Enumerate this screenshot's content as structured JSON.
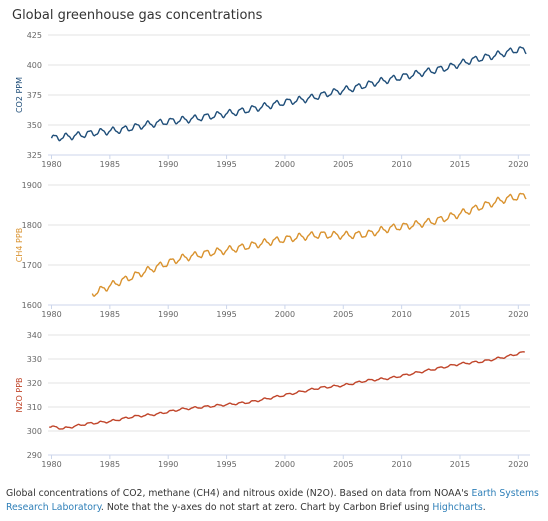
{
  "title": "Global greenhouse gas concentrations",
  "caption": {
    "text1": "Global concentrations of CO2, methane (CH4) and nitrous oxide (N2O). Based on data from NOAA's ",
    "link1": "Earth Systems Research Laboratory",
    "text2": ". Note that the y-axes do not start at zero. Chart by Carbon Brief using ",
    "link2": "Highcharts",
    "text3": "."
  },
  "chart_data": [
    {
      "type": "line",
      "ylabel": "CO2 PPM",
      "color": "#1f4e79",
      "ylim": [
        325,
        425
      ],
      "yticks": [
        "325",
        "350",
        "375",
        "400",
        "425"
      ],
      "xlim": [
        1979.7,
        2021
      ],
      "xticks": [
        "1980",
        "1985",
        "1990",
        "1995",
        "2000",
        "2005",
        "2010",
        "2015",
        "2020"
      ],
      "seasonal_amplitude": 2.5,
      "series": [
        {
          "x": [
            1980,
            1982,
            1984,
            1986,
            1988,
            1990,
            1992,
            1994,
            1996,
            1998,
            2000,
            2002,
            2004,
            2006,
            2008,
            2010,
            2012,
            2014,
            2016,
            2018,
            2020,
            2020.7
          ],
          "values": [
            339,
            341,
            344,
            346,
            350,
            353,
            355,
            358,
            361,
            365,
            369,
            372,
            377,
            381,
            386,
            390,
            394,
            398,
            404,
            408,
            413,
            412
          ]
        }
      ]
    },
    {
      "type": "line",
      "ylabel": "CH4 PPB",
      "color": "#d9922e",
      "ylim": [
        1600,
        1900
      ],
      "yticks": [
        "1600",
        "1700",
        "1800",
        "1900"
      ],
      "xlim": [
        1979.7,
        2021
      ],
      "xticks": [
        "1980",
        "1985",
        "1990",
        "1995",
        "2000",
        "2005",
        "2010",
        "2015",
        "2020"
      ],
      "seasonal_amplitude": 8,
      "series": [
        {
          "x": [
            1983.5,
            1985,
            1987,
            1989,
            1991,
            1993,
            1995,
            1997,
            1999,
            2001,
            2003,
            2005,
            2007,
            2009,
            2011,
            2013,
            2015,
            2017,
            2019,
            2020.7
          ],
          "values": [
            1628,
            1648,
            1672,
            1695,
            1716,
            1728,
            1737,
            1748,
            1760,
            1769,
            1776,
            1774,
            1777,
            1792,
            1800,
            1811,
            1828,
            1848,
            1866,
            1874
          ]
        }
      ]
    },
    {
      "type": "line",
      "ylabel": "N2O PPB",
      "color": "#c0452a",
      "ylim": [
        290,
        340
      ],
      "yticks": [
        "290",
        "300",
        "310",
        "320",
        "330",
        "340"
      ],
      "xlim": [
        1979.7,
        2021
      ],
      "xticks": [
        "1980",
        "1985",
        "1990",
        "1995",
        "2000",
        "2005",
        "2010",
        "2015",
        "2020"
      ],
      "seasonal_amplitude": 0.4,
      "series": [
        {
          "x": [
            1979.8,
            1981,
            1983,
            1985,
            1987,
            1989,
            1991,
            1993,
            1995,
            1997,
            1999,
            2001,
            2003,
            2005,
            2007,
            2009,
            2011,
            2013,
            2015,
            2017,
            2019,
            2020.6
          ],
          "values": [
            302,
            301,
            303,
            304,
            306,
            307,
            309,
            310,
            311,
            312,
            314,
            316,
            318,
            319,
            321,
            322,
            324,
            326,
            328,
            329,
            331,
            333
          ]
        }
      ]
    }
  ]
}
